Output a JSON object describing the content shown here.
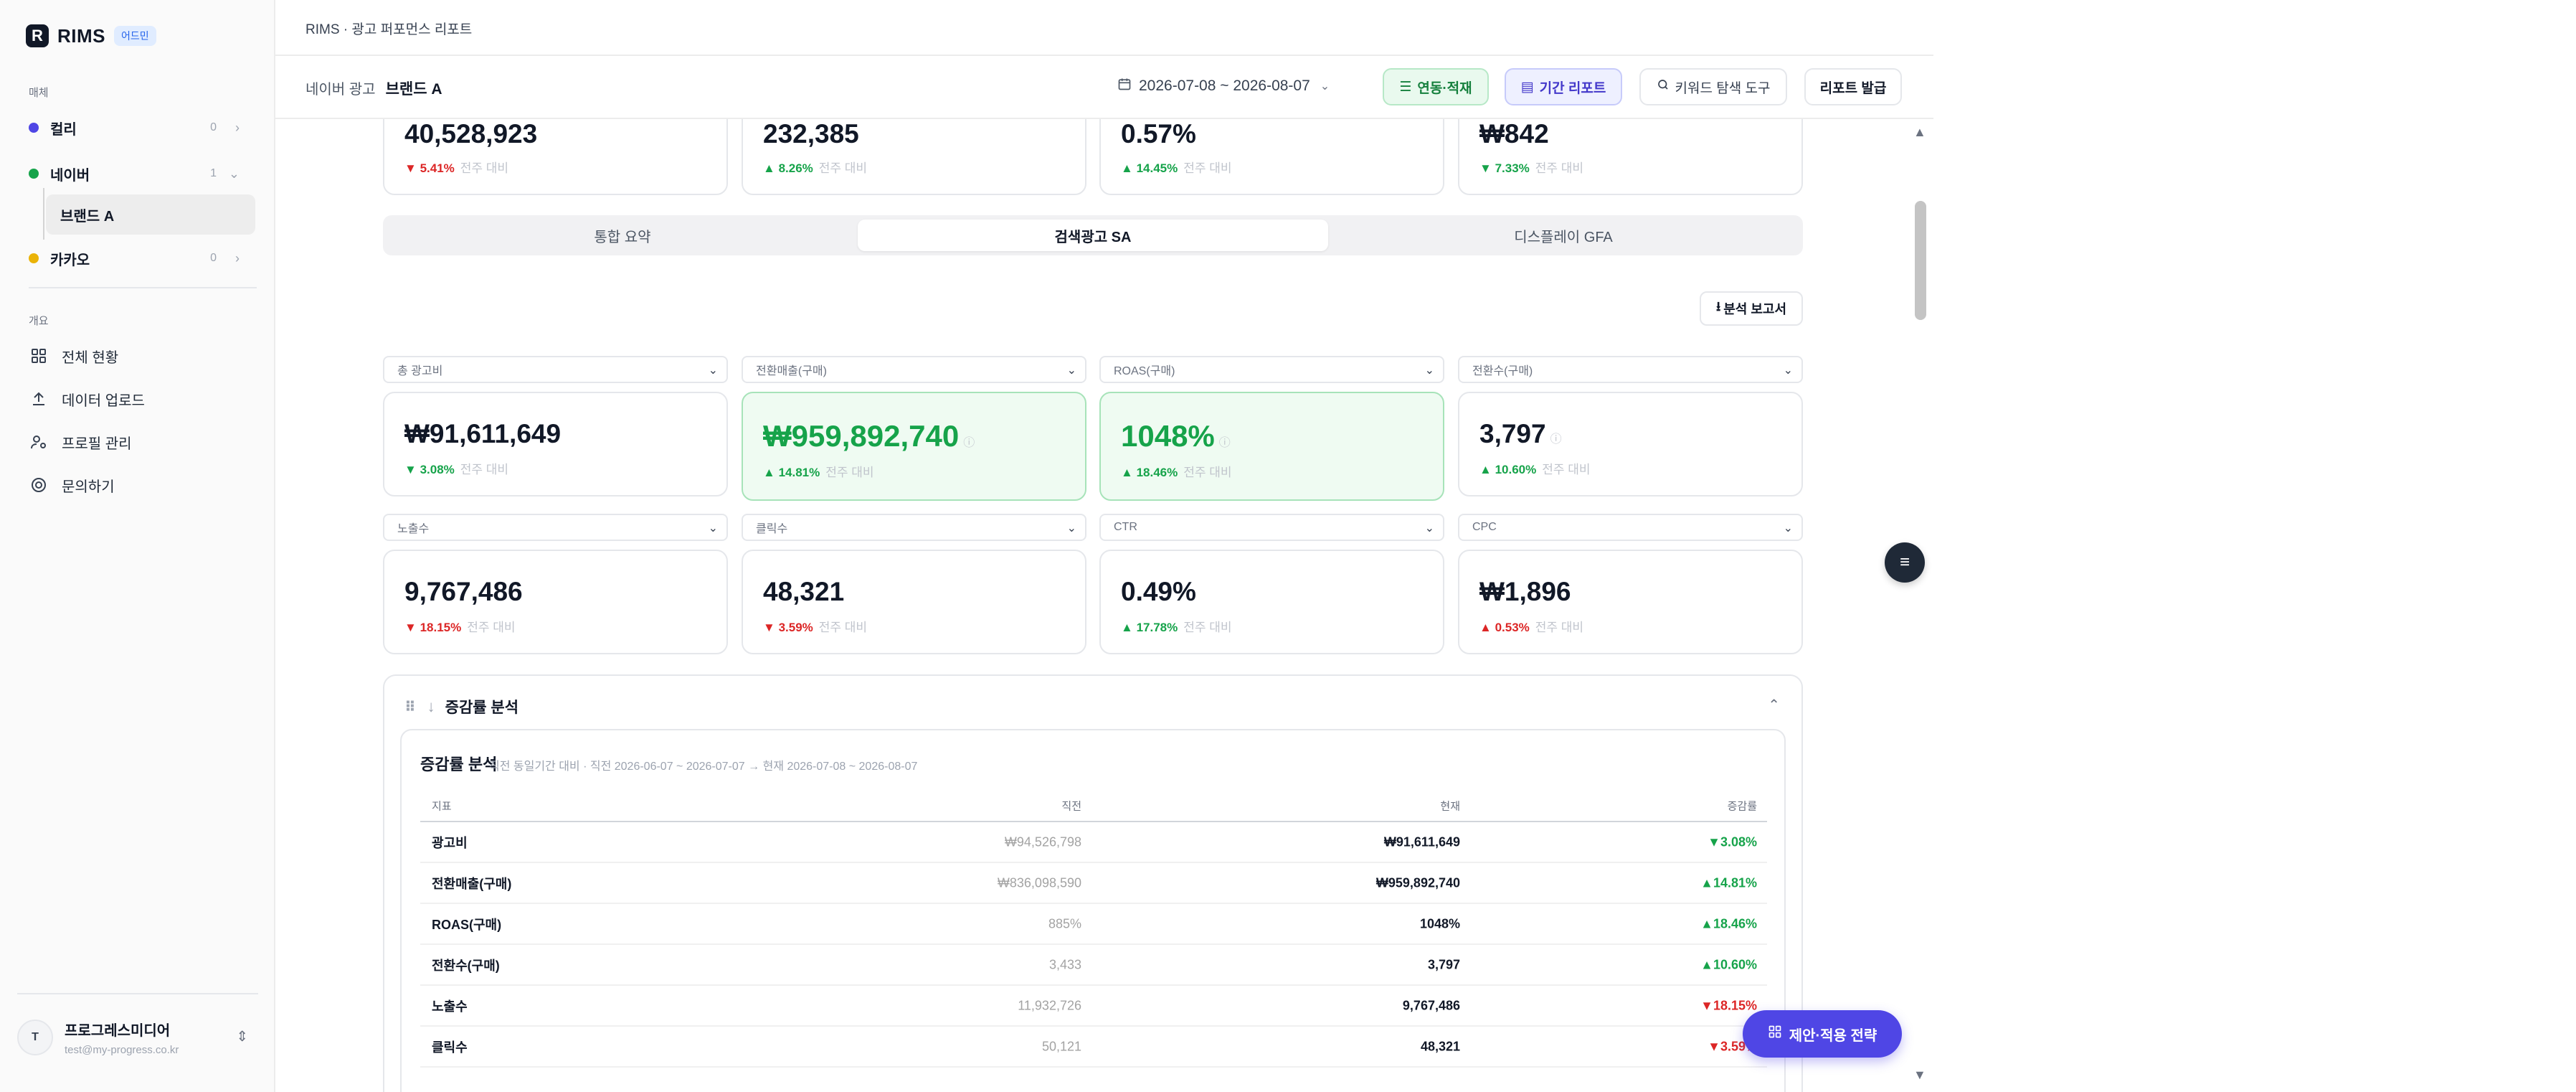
{
  "sidebar": {
    "logo_letter": "R",
    "logo_text": "RIMS",
    "logo_badge": "어드민",
    "media_section": "매체",
    "media": [
      {
        "label": "컬리",
        "count": "0",
        "chevron": ">",
        "color": "#4f46e5"
      },
      {
        "label": "네이버",
        "count": "1",
        "chevron": "v",
        "color": "#16a34a"
      },
      {
        "label": "카카오",
        "count": "0",
        "chevron": ">",
        "color": "#eab308"
      }
    ],
    "sub_item": "브랜드 A",
    "overview_section": "개요",
    "nav": [
      {
        "label": "전체 현황",
        "icon": "grid-icon"
      },
      {
        "label": "데이터 업로드",
        "icon": "upload-icon"
      },
      {
        "label": "프로필 관리",
        "icon": "profile-icon"
      },
      {
        "label": "문의하기",
        "icon": "support-icon"
      }
    ],
    "account": {
      "initial": "T",
      "name": "프로그레스미디어",
      "email": "test@my-progress.co.kr"
    }
  },
  "header": {
    "breadcrumb": "RIMS · 광고 퍼포먼스 리포트",
    "title_prefix": "네이버 광고",
    "title_brand": "브랜드 A",
    "date_range": "2026-07-08 ~ 2026-08-07",
    "buttons": {
      "integration": "연동·적재",
      "period_report": "기간 리포트",
      "keyword_tool": "키워드 탐색 도구",
      "issue_report": "리포트 발급"
    }
  },
  "top_cards": [
    {
      "value": "40,528,923",
      "change": "5.41%",
      "dir": "down",
      "label": "전주 대비"
    },
    {
      "value": "232,385",
      "change": "8.26%",
      "dir": "up",
      "label": "전주 대비"
    },
    {
      "value": "0.57%",
      "change": "14.45%",
      "dir": "up",
      "label": "전주 대비"
    },
    {
      "value": "₩842",
      "change": "7.33%",
      "dir": "down-green",
      "label": "전주 대비"
    }
  ],
  "tabs": [
    {
      "label": "통합 요약"
    },
    {
      "label": "검색광고 SA"
    },
    {
      "label": "디스플레이 GFA"
    }
  ],
  "analysis_button": "분석 보고서",
  "metric_rows": [
    [
      {
        "select": "총 광고비",
        "value": "₩91,611,649",
        "change": "3.08%",
        "dir": "down-green",
        "label": "전주 대비",
        "highlight": false,
        "info": false
      },
      {
        "select": "전환매출(구매)",
        "value": "₩959,892,740",
        "change": "14.81%",
        "dir": "up",
        "label": "전주 대비",
        "highlight": true,
        "info": true
      },
      {
        "select": "ROAS(구매)",
        "value": "1048%",
        "change": "18.46%",
        "dir": "up",
        "label": "전주 대비",
        "highlight": true,
        "info": true
      },
      {
        "select": "전환수(구매)",
        "value": "3,797",
        "change": "10.60%",
        "dir": "up",
        "label": "전주 대비",
        "highlight": false,
        "info": true
      }
    ],
    [
      {
        "select": "노출수",
        "value": "9,767,486",
        "change": "18.15%",
        "dir": "down",
        "label": "전주 대비",
        "highlight": false,
        "info": false
      },
      {
        "select": "클릭수",
        "value": "48,321",
        "change": "3.59%",
        "dir": "down",
        "label": "전주 대비",
        "highlight": false,
        "info": false
      },
      {
        "select": "CTR",
        "value": "0.49%",
        "change": "17.78%",
        "dir": "up",
        "label": "전주 대비",
        "highlight": false,
        "info": false
      },
      {
        "select": "CPC",
        "value": "₩1,896",
        "change": "0.53%",
        "dir": "up-red",
        "label": "전주 대비",
        "highlight": false,
        "info": false
      }
    ]
  ],
  "growth": {
    "section_title": "증감률 분석",
    "inner_title": "증감률 분석",
    "inner_subtitle": "직전 동일기간 대비 · 직전 2026-06-07 ~ 2026-07-07 → 현재 2026-07-08 ~ 2026-08-07",
    "columns": [
      "지표",
      "직전",
      "현재",
      "증감률"
    ],
    "rows": [
      {
        "metric": "광고비",
        "prev": "₩94,526,798",
        "curr": "₩91,611,649",
        "rate": "3.08%",
        "dir": "down-green"
      },
      {
        "metric": "전환매출(구매)",
        "prev": "₩836,098,590",
        "curr": "₩959,892,740",
        "rate": "14.81%",
        "dir": "up"
      },
      {
        "metric": "ROAS(구매)",
        "prev": "885%",
        "curr": "1048%",
        "rate": "18.46%",
        "dir": "up"
      },
      {
        "metric": "전환수(구매)",
        "prev": "3,433",
        "curr": "3,797",
        "rate": "10.60%",
        "dir": "up"
      },
      {
        "metric": "노출수",
        "prev": "11,932,726",
        "curr": "9,767,486",
        "rate": "18.15%",
        "dir": "down"
      },
      {
        "metric": "클릭수",
        "prev": "50,121",
        "curr": "48,321",
        "rate": "3.59%",
        "dir": "down"
      }
    ]
  },
  "fab": {
    "strategy_label": "제안·적용 전략"
  },
  "colors": {
    "green": "#16a34a",
    "red": "#dc2626",
    "accent": "#4f46e5"
  }
}
